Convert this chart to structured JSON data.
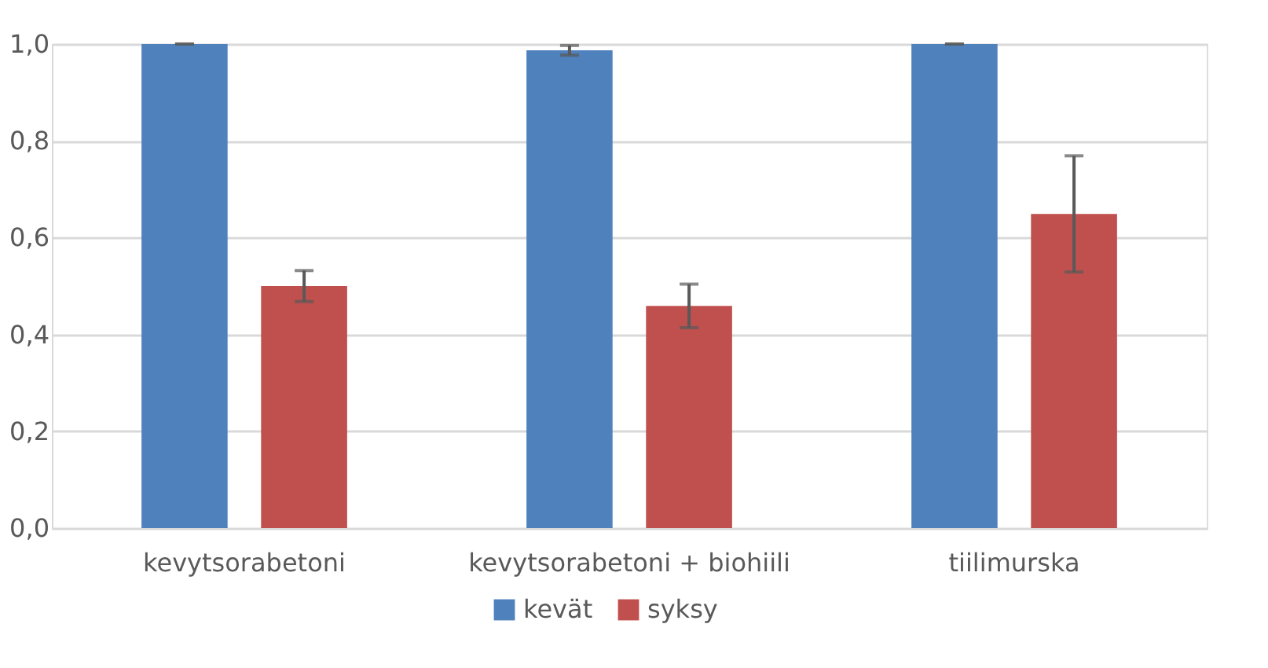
{
  "chart_data": {
    "type": "bar",
    "categories": [
      "kevytsorabetoni",
      "kevytsorabetoni + biohiili",
      "tiilimurska"
    ],
    "series": [
      {
        "name": "kevät",
        "color": "#4f81bd",
        "values": [
          1.0,
          0.987,
          1.0
        ],
        "errors": [
          0,
          0.01,
          0
        ]
      },
      {
        "name": "syksy",
        "color": "#c0504d",
        "values": [
          0.5,
          0.459,
          0.649
        ],
        "errors": [
          0.032,
          0.045,
          0.12
        ]
      }
    ],
    "ylim": [
      0,
      1.0
    ],
    "yticks": [
      {
        "value": 0,
        "label": "0,0"
      },
      {
        "value": 0.2,
        "label": "0,2"
      },
      {
        "value": 0.4,
        "label": "0,4"
      },
      {
        "value": 0.6,
        "label": "0,6"
      },
      {
        "value": 0.8,
        "label": "0,8"
      },
      {
        "value": 1.0,
        "label": "1,0"
      }
    ],
    "grid": "y",
    "legend": "bottom"
  }
}
